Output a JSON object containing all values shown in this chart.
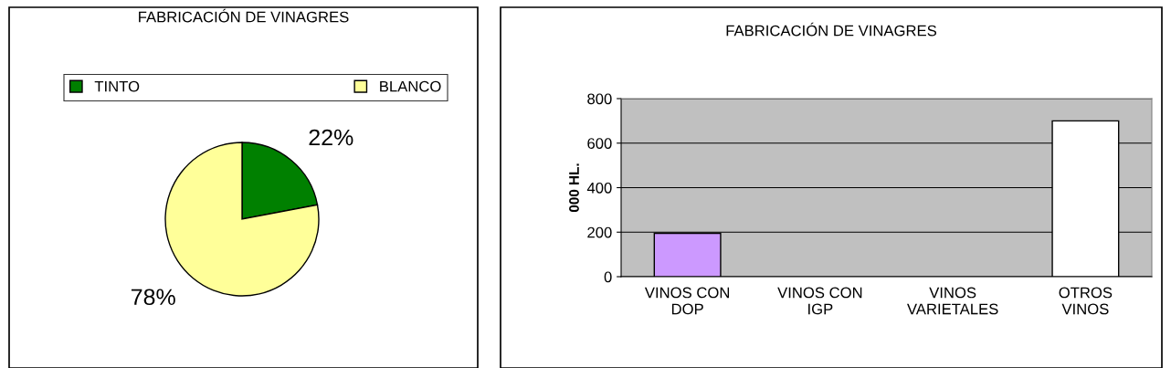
{
  "chart_data": [
    {
      "type": "pie",
      "title": "FABRICACIÓN DE VINAGRES",
      "categories": [
        "TINTO",
        "BLANCO"
      ],
      "values": [
        22,
        78
      ],
      "colors": [
        "#008000",
        "#ffff99"
      ],
      "value_labels": [
        "22%",
        "78%"
      ],
      "legend": "top"
    },
    {
      "type": "bar",
      "title": "FABRICACIÓN DE VINAGRES",
      "ylabel": "000 HL.",
      "categories": [
        "VINOS CON\nDOP",
        "VINOS CON\nIGP",
        "VINOS\nVARIETALES",
        "OTROS\nVINOS"
      ],
      "values": [
        195,
        null,
        null,
        700
      ],
      "colors": [
        "#cc99ff",
        null,
        null,
        "#ffffff"
      ],
      "ylim": [
        0,
        800
      ],
      "yticks": [
        0,
        200,
        400,
        600,
        800
      ],
      "grid": "y"
    }
  ]
}
